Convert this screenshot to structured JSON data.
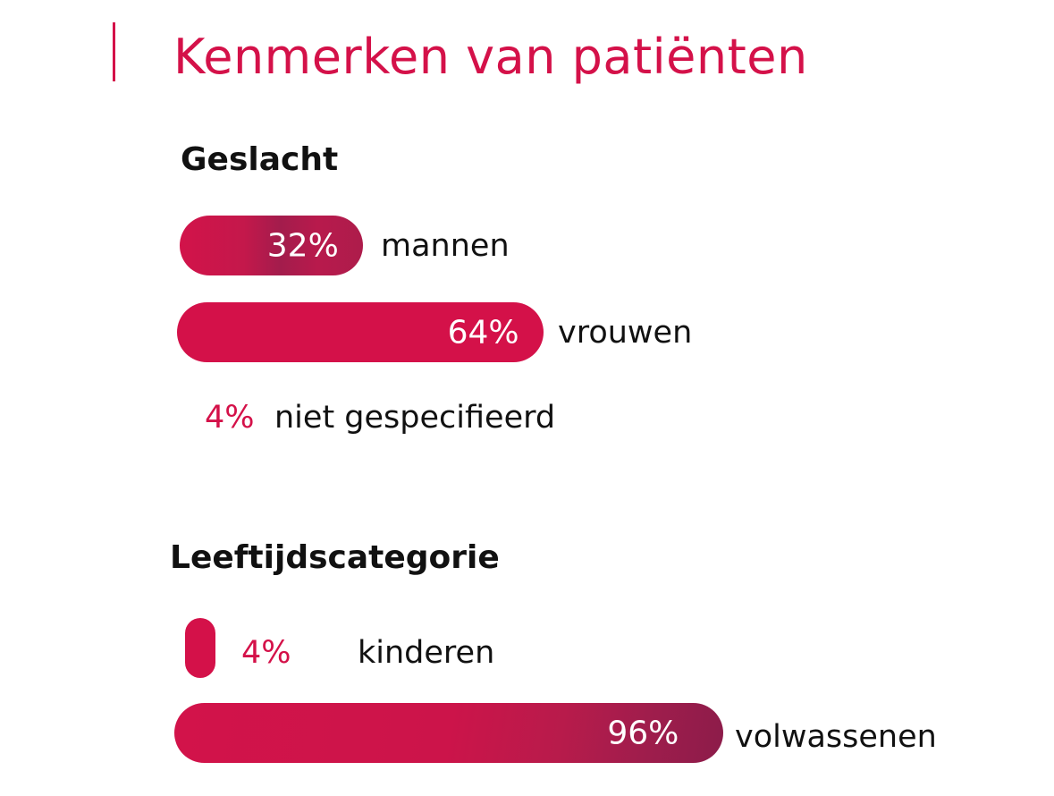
{
  "title": "Kenmerken van patiënten",
  "colors": {
    "accent": "#d41149",
    "dark": "#8e1c4a"
  },
  "chart_data": [
    {
      "type": "bar",
      "title": "Geslacht",
      "unit": "%",
      "categories": [
        "mannen",
        "vrouwen",
        "niet gespecifieerd"
      ],
      "values": [
        32,
        64,
        4
      ],
      "labels": [
        "32%",
        "64%",
        "4%"
      ]
    },
    {
      "type": "bar",
      "title": "Leeftijdscategorie",
      "unit": "%",
      "categories": [
        "kinderen",
        "volwassenen"
      ],
      "values": [
        4,
        96
      ],
      "labels": [
        "4%",
        "96%"
      ]
    }
  ]
}
